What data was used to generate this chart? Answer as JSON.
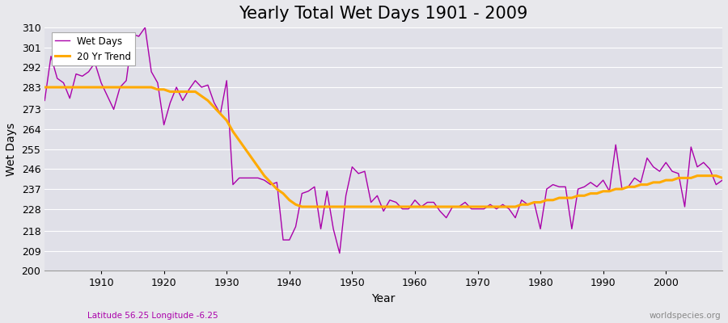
{
  "title": "Yearly Total Wet Days 1901 - 2009",
  "xlabel": "Year",
  "ylabel": "Wet Days",
  "subtitle_left": "Latitude 56.25 Longitude -6.25",
  "subtitle_right": "worldspecies.org",
  "years": [
    1901,
    1902,
    1903,
    1904,
    1905,
    1906,
    1907,
    1908,
    1909,
    1910,
    1911,
    1912,
    1913,
    1914,
    1915,
    1916,
    1917,
    1918,
    1919,
    1920,
    1921,
    1922,
    1923,
    1924,
    1925,
    1926,
    1927,
    1928,
    1929,
    1930,
    1931,
    1932,
    1933,
    1934,
    1935,
    1936,
    1937,
    1938,
    1939,
    1940,
    1941,
    1942,
    1943,
    1944,
    1945,
    1946,
    1947,
    1948,
    1949,
    1950,
    1951,
    1952,
    1953,
    1954,
    1955,
    1956,
    1957,
    1958,
    1959,
    1960,
    1961,
    1962,
    1963,
    1964,
    1965,
    1966,
    1967,
    1968,
    1969,
    1970,
    1971,
    1972,
    1973,
    1974,
    1975,
    1976,
    1977,
    1978,
    1979,
    1980,
    1981,
    1982,
    1983,
    1984,
    1985,
    1986,
    1987,
    1988,
    1989,
    1990,
    1991,
    1992,
    1993,
    1994,
    1995,
    1996,
    1997,
    1998,
    1999,
    2000,
    2001,
    2002,
    2003,
    2004,
    2005,
    2006,
    2007,
    2008,
    2009
  ],
  "wet_days": [
    277,
    297,
    287,
    285,
    278,
    289,
    288,
    290,
    294,
    285,
    279,
    273,
    283,
    286,
    307,
    306,
    310,
    290,
    285,
    266,
    276,
    283,
    277,
    282,
    286,
    283,
    284,
    276,
    271,
    286,
    239,
    242,
    242,
    242,
    242,
    241,
    239,
    240,
    214,
    214,
    220,
    235,
    236,
    238,
    219,
    236,
    219,
    208,
    234,
    247,
    244,
    245,
    231,
    234,
    227,
    232,
    231,
    228,
    228,
    232,
    229,
    231,
    231,
    227,
    224,
    229,
    229,
    231,
    228,
    228,
    228,
    230,
    228,
    230,
    228,
    224,
    232,
    230,
    231,
    219,
    237,
    239,
    238,
    238,
    219,
    237,
    238,
    240,
    238,
    241,
    236,
    257,
    237,
    238,
    242,
    240,
    251,
    247,
    245,
    249,
    245,
    244,
    229,
    256,
    247,
    249,
    246,
    239,
    241
  ],
  "trend": [
    283,
    283,
    283,
    283,
    283,
    283,
    283,
    283,
    283,
    283,
    283,
    283,
    283,
    283,
    283,
    283,
    283,
    283,
    282,
    282,
    281,
    281,
    281,
    281,
    281,
    279,
    277,
    274,
    271,
    268,
    263,
    259,
    255,
    251,
    247,
    243,
    240,
    237,
    235,
    232,
    230,
    229,
    229,
    229,
    229,
    229,
    229,
    229,
    229,
    229,
    229,
    229,
    229,
    229,
    229,
    229,
    229,
    229,
    229,
    229,
    229,
    229,
    229,
    229,
    229,
    229,
    229,
    229,
    229,
    229,
    229,
    229,
    229,
    229,
    229,
    229,
    230,
    230,
    231,
    231,
    232,
    232,
    233,
    233,
    233,
    234,
    234,
    235,
    235,
    236,
    236,
    237,
    237,
    238,
    238,
    239,
    239,
    240,
    240,
    241,
    241,
    242,
    242,
    242,
    243,
    243,
    243,
    243,
    242
  ],
  "wet_days_color": "#aa00aa",
  "trend_color": "#ffaa00",
  "background_color": "#e8e8ec",
  "plot_bg_color": "#e0e0e8",
  "ylim": [
    200,
    310
  ],
  "yticks": [
    200,
    209,
    218,
    228,
    237,
    246,
    255,
    264,
    273,
    283,
    292,
    301,
    310
  ],
  "xticks": [
    1910,
    1920,
    1930,
    1940,
    1950,
    1960,
    1970,
    1980,
    1990,
    2000
  ],
  "legend_wet": "Wet Days",
  "legend_trend": "20 Yr Trend",
  "grid_color": "#ffffff",
  "title_fontsize": 15,
  "axis_fontsize": 10,
  "tick_fontsize": 9,
  "xlim_min": 1901,
  "xlim_max": 2009
}
